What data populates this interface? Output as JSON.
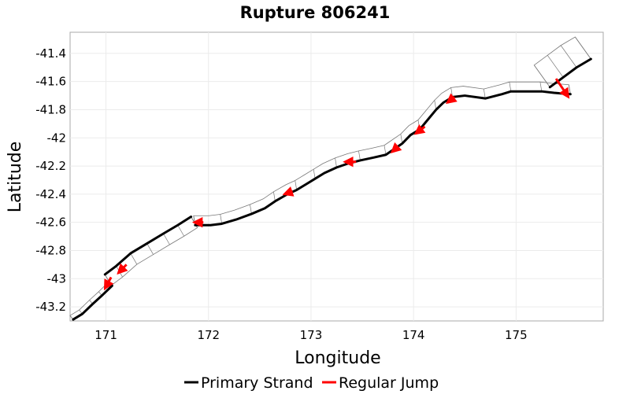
{
  "chart_data": {
    "type": "line",
    "title": "Rupture 806241",
    "xlabel": "Longitude",
    "ylabel": "Latitude",
    "xlim": [
      170.65,
      175.85
    ],
    "ylim": [
      -43.3,
      -41.25
    ],
    "xticks": [
      171,
      172,
      173,
      174,
      175
    ],
    "yticks": [
      -41.4,
      -41.6,
      -41.8,
      -42,
      -42.2,
      -42.4,
      -42.6,
      -42.8,
      -43,
      -43.2
    ],
    "xtick_labels": [
      "171",
      "172",
      "173",
      "174",
      "175"
    ],
    "ytick_labels": [
      "-41.4",
      "-41.6",
      "-41.8",
      "-42",
      "-42.2",
      "-42.4",
      "-42.6",
      "-42.8",
      "-43",
      "-43.2"
    ],
    "grid": true,
    "legend_position": "bottom",
    "legend": [
      {
        "label": "Primary Strand",
        "color": "#000000"
      },
      {
        "label": "Regular Jump",
        "color": "#ff0000"
      }
    ],
    "series": [
      {
        "name": "Primary Strand",
        "color": "#000000",
        "segments": [
          [
            [
              170.68,
              -43.29
            ],
            [
              170.77,
              -43.25
            ],
            [
              170.87,
              -43.18
            ],
            [
              170.96,
              -43.12
            ],
            [
              171.06,
              -43.05
            ]
          ],
          [
            [
              170.99,
              -42.97
            ],
            [
              171.1,
              -42.91
            ],
            [
              171.24,
              -42.82
            ],
            [
              171.4,
              -42.75
            ],
            [
              171.56,
              -42.68
            ],
            [
              171.7,
              -42.62
            ],
            [
              171.83,
              -42.56
            ]
          ],
          [
            [
              171.87,
              -42.62
            ],
            [
              172.02,
              -42.62
            ],
            [
              172.13,
              -42.61
            ],
            [
              172.27,
              -42.58
            ],
            [
              172.42,
              -42.54
            ],
            [
              172.55,
              -42.5
            ],
            [
              172.65,
              -42.45
            ],
            [
              172.77,
              -42.4
            ],
            [
              172.86,
              -42.37
            ],
            [
              172.95,
              -42.33
            ],
            [
              173.04,
              -42.29
            ],
            [
              173.13,
              -42.25
            ],
            [
              173.25,
              -42.21
            ],
            [
              173.37,
              -42.18
            ],
            [
              173.48,
              -42.16
            ],
            [
              173.61,
              -42.14
            ],
            [
              173.73,
              -42.12
            ],
            [
              173.79,
              -42.09
            ],
            [
              173.89,
              -42.04
            ],
            [
              173.97,
              -41.98
            ],
            [
              174.06,
              -41.94
            ],
            [
              174.14,
              -41.87
            ],
            [
              174.22,
              -41.8
            ],
            [
              174.29,
              -41.75
            ],
            [
              174.38,
              -41.71
            ],
            [
              174.5,
              -41.7
            ],
            [
              174.7,
              -41.72
            ],
            [
              174.86,
              -41.69
            ],
            [
              174.95,
              -41.67
            ],
            [
              175.1,
              -41.67
            ],
            [
              175.25,
              -41.67
            ],
            [
              175.37,
              -41.68
            ],
            [
              175.53,
              -41.69
            ]
          ],
          [
            [
              175.33,
              -41.64
            ],
            [
              175.46,
              -41.57
            ],
            [
              175.59,
              -41.5
            ],
            [
              175.73,
              -41.44
            ]
          ]
        ]
      },
      {
        "name": "Regular Jump",
        "color": "#ff0000",
        "jumps": [
          [
            [
              171.05,
              -42.99
            ],
            [
              170.99,
              -43.07
            ]
          ],
          [
            [
              171.2,
              -42.9
            ],
            [
              171.12,
              -42.96
            ]
          ],
          [
            [
              171.95,
              -42.6
            ],
            [
              171.86,
              -42.6
            ]
          ],
          [
            [
              172.82,
              -42.38
            ],
            [
              172.74,
              -42.4
            ]
          ],
          [
            [
              173.44,
              -42.17
            ],
            [
              173.33,
              -42.17
            ]
          ],
          [
            [
              173.85,
              -42.06
            ],
            [
              173.79,
              -42.1
            ]
          ],
          [
            [
              174.11,
              -41.92
            ],
            [
              174.02,
              -41.97
            ]
          ],
          [
            [
              174.4,
              -41.71
            ],
            [
              174.33,
              -41.75
            ]
          ],
          [
            [
              175.39,
              -41.58
            ],
            [
              175.51,
              -41.71
            ]
          ]
        ]
      }
    ]
  }
}
